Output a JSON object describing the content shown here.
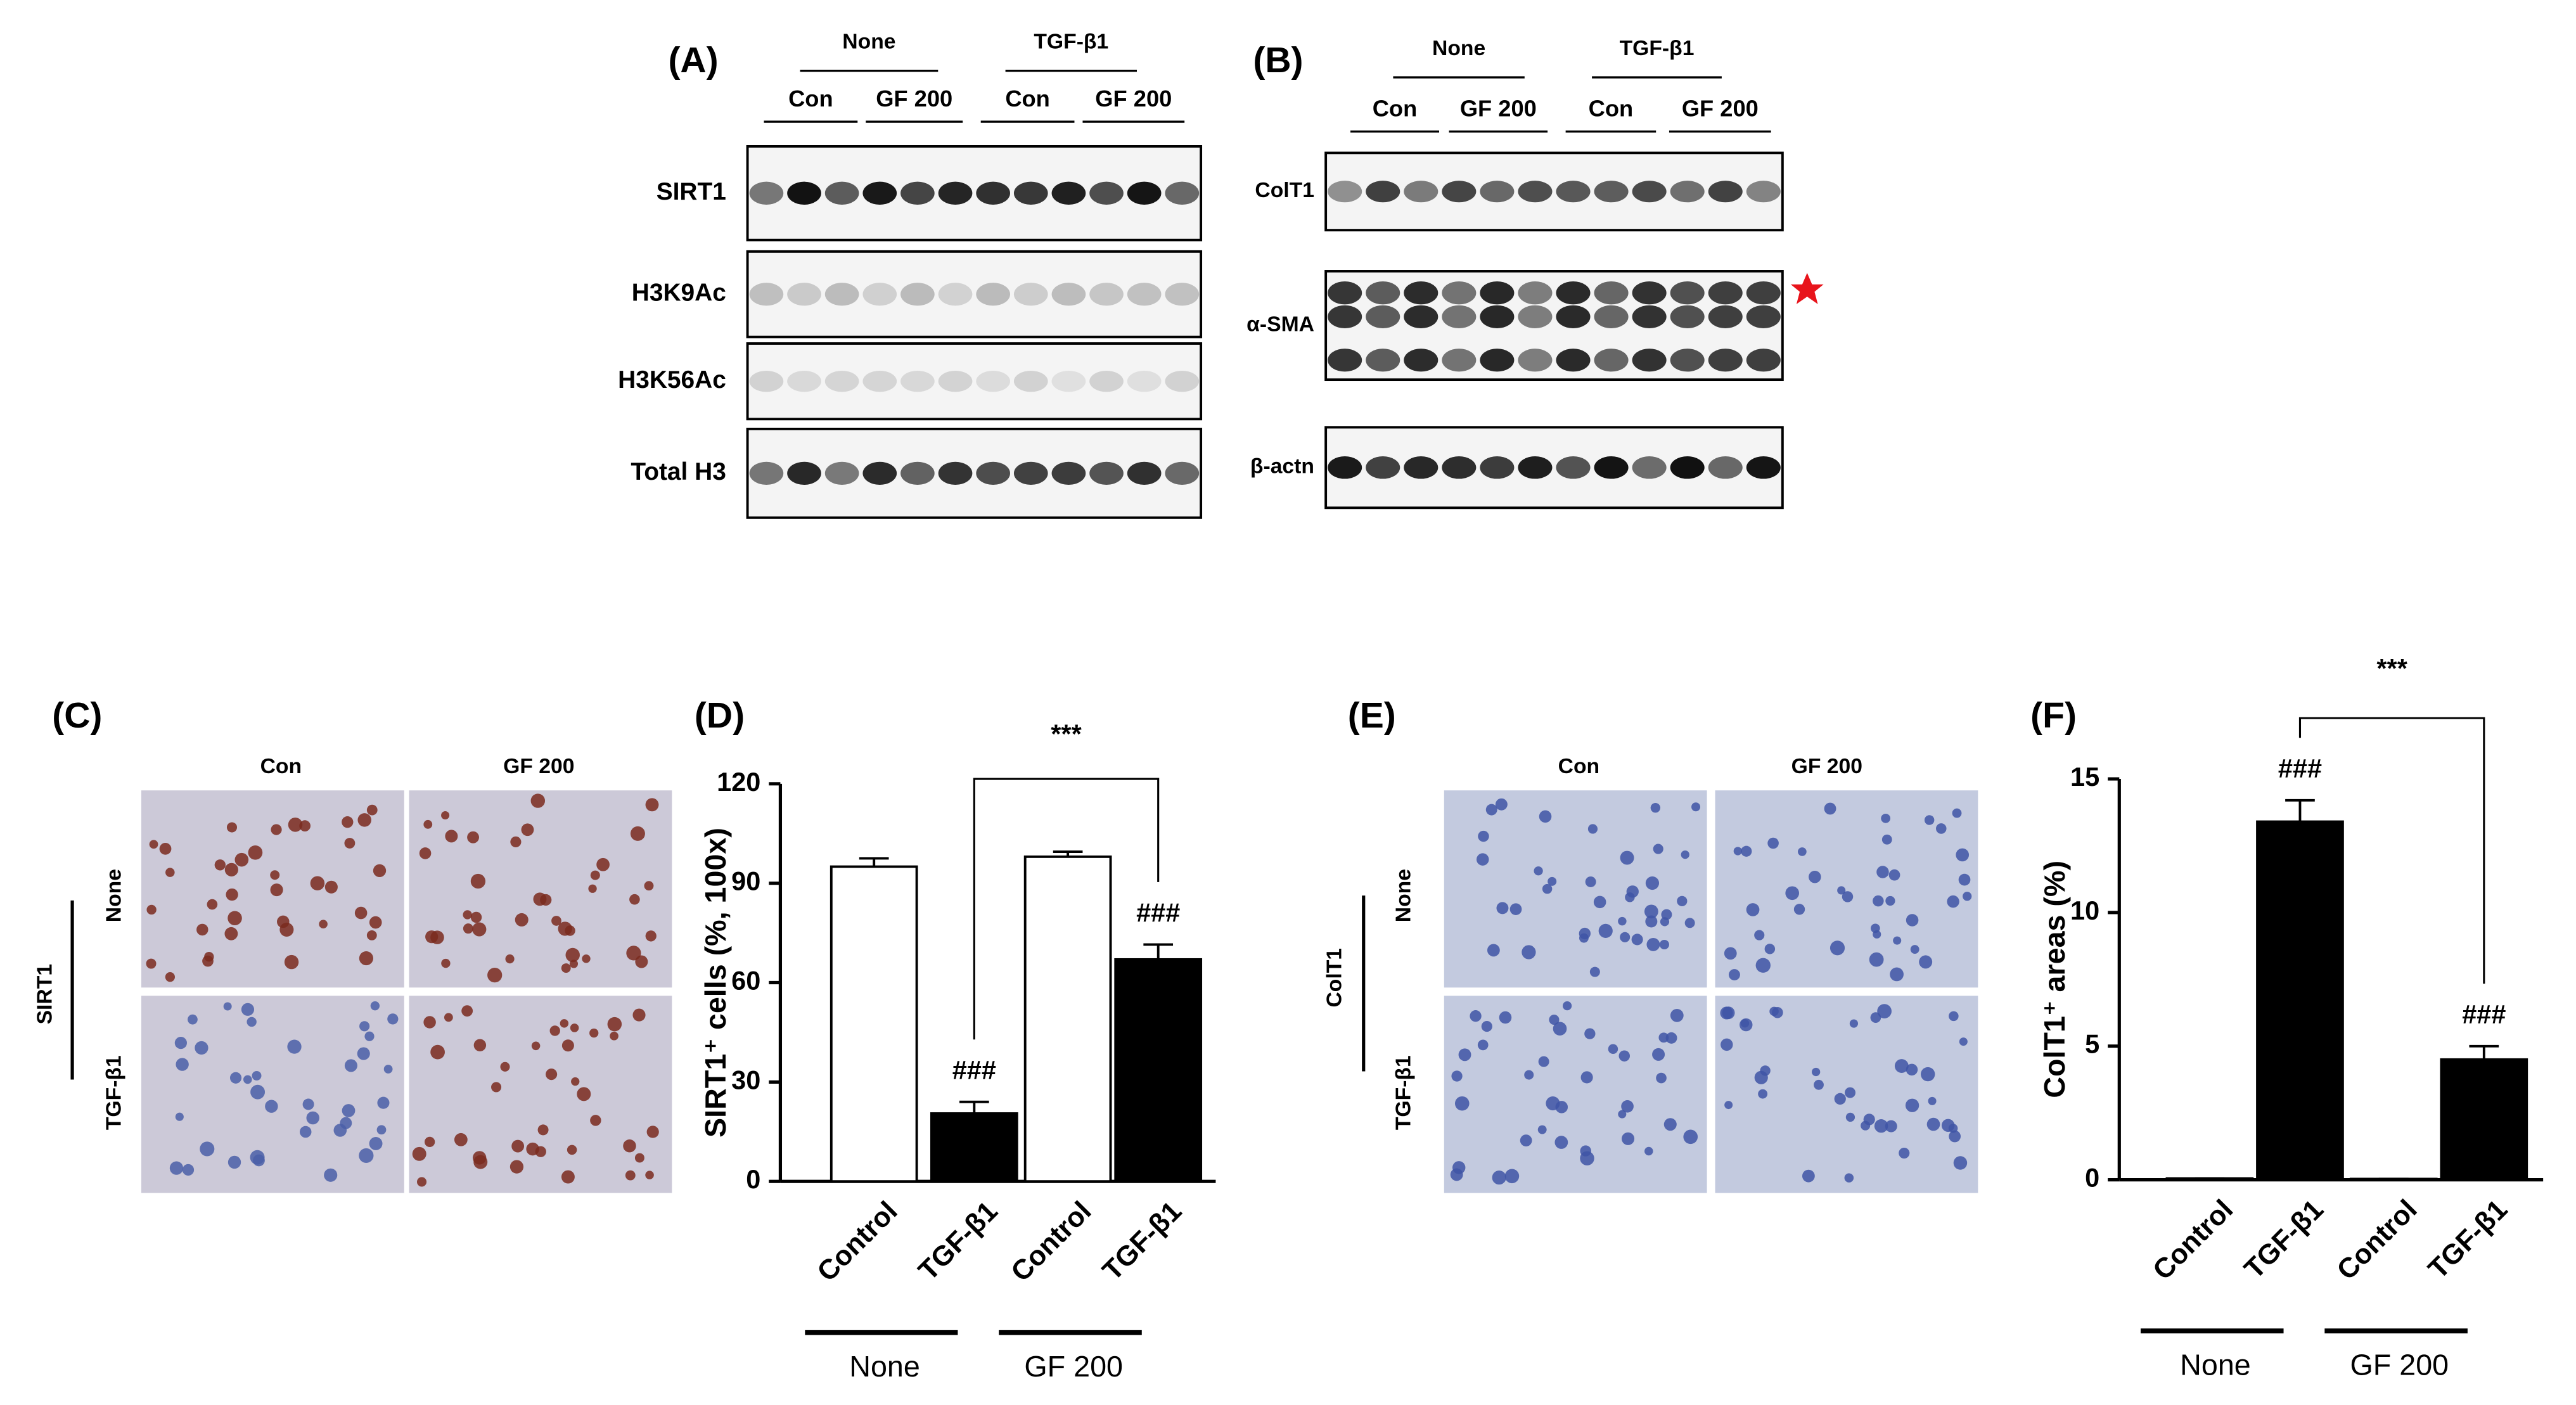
{
  "panels": {
    "A": {
      "label": "(A)",
      "groups": [
        "None",
        "TGF-β1"
      ],
      "subgroups": [
        "Con",
        "GF 200",
        "Con",
        "GF 200"
      ],
      "rows": [
        "SIRT1",
        "H3K9Ac",
        "H3K56Ac",
        "Total H3"
      ]
    },
    "B": {
      "label": "(B)",
      "groups": [
        "None",
        "TGF-β1"
      ],
      "subgroups": [
        "Con",
        "GF 200",
        "Con",
        "GF 200"
      ],
      "rows": [
        "ColT1",
        "α-SMA",
        "β-actn"
      ]
    },
    "C": {
      "label": "(C)",
      "stain": "SIRT1",
      "columns": [
        "Con",
        "GF 200"
      ],
      "rows": [
        "None",
        "TGF-β1"
      ]
    },
    "E": {
      "label": "(E)",
      "stain": "ColT1",
      "columns": [
        "Con",
        "GF 200"
      ],
      "rows": [
        "None",
        "TGF-β1"
      ]
    }
  },
  "chart_data": [
    {
      "type": "bar",
      "panel_label": "(D)",
      "y_label": "SIRT1⁺ cells (%, 100x)",
      "categories": [
        "Control",
        "TGF-β1",
        "Control",
        "TGF-β1"
      ],
      "values": [
        95,
        20.5,
        98,
        67
      ],
      "errors": [
        2.5,
        3.5,
        1.5,
        4.5
      ],
      "colors": [
        "#ffffff",
        "#000000",
        "#ffffff",
        "#000000"
      ],
      "bar_labels": [
        null,
        "###",
        null,
        "###"
      ],
      "bracket_label": "***",
      "groups": [
        "None",
        "GF 200"
      ],
      "ylim": [
        0,
        120
      ],
      "yticks": [
        0,
        30,
        60,
        90,
        120
      ]
    },
    {
      "type": "bar",
      "panel_label": "(F)",
      "y_label": "ColT1⁺ areas (%)",
      "categories": [
        "Control",
        "TGF-β1",
        "Control",
        "TGF-β1"
      ],
      "values": [
        0.05,
        13.4,
        0.03,
        4.5
      ],
      "errors": [
        0,
        0.8,
        0,
        0.5
      ],
      "colors": [
        "#ffffff",
        "#000000",
        "#ffffff",
        "#000000"
      ],
      "bar_labels": [
        null,
        "###",
        null,
        "###"
      ],
      "bracket_label": "***",
      "groups": [
        "None",
        "GF 200"
      ],
      "ylim": [
        0,
        15
      ],
      "yticks": [
        0,
        5,
        10,
        15
      ]
    }
  ]
}
